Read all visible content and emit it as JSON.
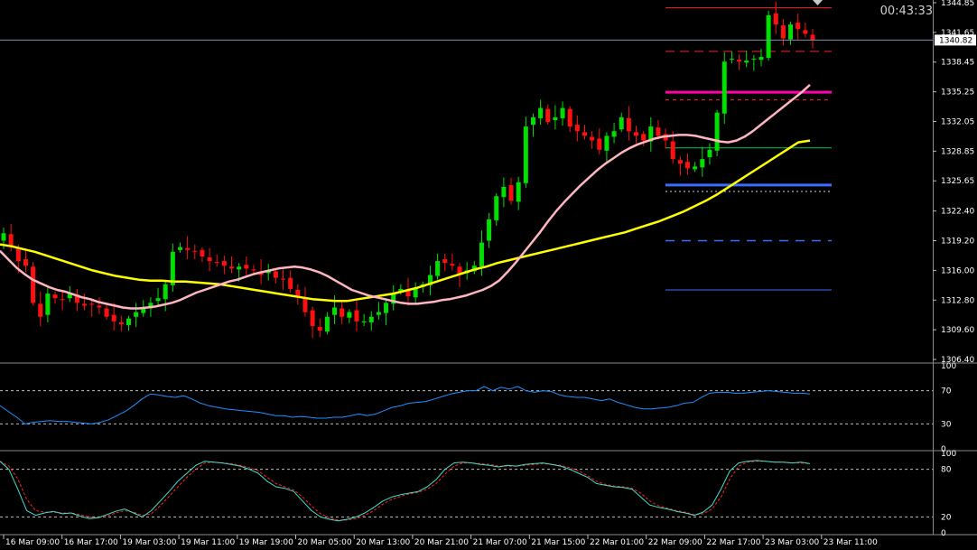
{
  "colors": {
    "background": "#000000",
    "bull_candle": "#00e000",
    "bear_candle": "#ff1010",
    "ma_fast": "#ffb6c1",
    "ma_slow": "#ffff00",
    "rsi_line": "#1e90ff",
    "stoch_main": "#40e0d0",
    "stoch_signal": "#ff2020",
    "level_red": "#ff2020",
    "level_magenta": "#ff00aa",
    "level_green": "#00cc44",
    "level_blue": "#3b6bff",
    "current_price_line": "#7d8fb0"
  },
  "timer": "00:43:33",
  "current_price_label": "1340.82",
  "chart_data": [
    {
      "type": "candlestick",
      "name": "main",
      "y_ticks": [
        1344.85,
        1341.65,
        1338.45,
        1335.25,
        1332.05,
        1328.85,
        1325.65,
        1322.4,
        1319.2,
        1316.0,
        1312.8,
        1309.6,
        1306.4
      ],
      "x_ticks": [
        "16 Mar 09:00",
        "16 Mar 17:00",
        "19 Mar 03:00",
        "19 Mar 11:00",
        "19 Mar 19:00",
        "20 Mar 05:00",
        "20 Mar 13:00",
        "20 Mar 21:00",
        "21 Mar 07:00",
        "21 Mar 15:00",
        "22 Mar 01:00",
        "22 Mar 09:00",
        "22 Mar 17:00",
        "23 Mar 03:00",
        "23 Mar 11:00"
      ],
      "ylim": [
        1306.4,
        1344.85
      ],
      "current_price": 1340.82,
      "candle_closes": [
        1320.0,
        1318.5,
        1317.0,
        1316.5,
        1312.5,
        1311.0,
        1313.5,
        1313.0,
        1312.8,
        1313.5,
        1312.5,
        1312.2,
        1312.3,
        1312.0,
        1311.0,
        1310.5,
        1310.2,
        1310.8,
        1311.5,
        1312.0,
        1312.5,
        1313.0,
        1314.5,
        1318.0,
        1318.5,
        1318.2,
        1318.0,
        1317.5,
        1317.0,
        1316.8,
        1316.5,
        1316.2,
        1316.4,
        1316.2,
        1316.0,
        1315.5,
        1316.0,
        1315.2,
        1315.0,
        1314.0,
        1313.2,
        1311.5,
        1310.0,
        1309.5,
        1311.0,
        1312.0,
        1311.0,
        1311.5,
        1310.5,
        1310.5,
        1311.0,
        1311.5,
        1312.5,
        1313.5,
        1314.0,
        1313.2,
        1314.0,
        1314.5,
        1315.5,
        1317.0,
        1316.8,
        1316.5,
        1315.5,
        1316.0,
        1316.5,
        1319.0,
        1321.5,
        1324.0,
        1325.0,
        1323.5,
        1325.5,
        1331.5,
        1332.5,
        1333.5,
        1332.0,
        1332.5,
        1333.5,
        1331.5,
        1331.0,
        1330.5,
        1330.0,
        1329.0,
        1330.5,
        1331.0,
        1332.5,
        1331.0,
        1330.5,
        1330.0,
        1331.5,
        1330.5,
        1330.0,
        1328.0,
        1327.5,
        1327.0,
        1327.2,
        1328.0,
        1329.0,
        1333.0,
        1338.5,
        1338.8,
        1338.5,
        1338.6,
        1338.8,
        1339.0,
        1343.5,
        1342.5,
        1341.0,
        1342.5,
        1342.0,
        1341.5,
        1340.82
      ],
      "levels": [
        1344.3,
        1339.6,
        1335.2,
        1334.4,
        1329.2,
        1325.2,
        1324.5,
        1319.2,
        1313.9
      ],
      "ma_fast": [
        1318.1,
        1317.2,
        1316.3,
        1315.6,
        1315.0,
        1314.6,
        1314.2,
        1313.9,
        1313.7,
        1313.4,
        1313.1,
        1312.9,
        1312.6,
        1312.4,
        1312.2,
        1312.0,
        1311.9,
        1311.9,
        1312.0,
        1312.1,
        1312.3,
        1312.5,
        1312.8,
        1313.2,
        1313.6,
        1313.9,
        1314.2,
        1314.5,
        1314.8,
        1315.0,
        1315.3,
        1315.6,
        1315.8,
        1316.0,
        1316.2,
        1316.3,
        1316.4,
        1316.3,
        1316.1,
        1315.8,
        1315.4,
        1314.9,
        1314.4,
        1313.9,
        1313.6,
        1313.3,
        1313.1,
        1312.9,
        1312.7,
        1312.5,
        1312.4,
        1312.4,
        1312.5,
        1312.6,
        1312.8,
        1312.9,
        1313.1,
        1313.3,
        1313.6,
        1313.9,
        1314.3,
        1314.9,
        1315.8,
        1316.8,
        1317.9,
        1319.0,
        1320.1,
        1321.3,
        1322.4,
        1323.4,
        1324.3,
        1325.2,
        1326.0,
        1326.8,
        1327.5,
        1328.1,
        1328.7,
        1329.2,
        1329.6,
        1329.9,
        1330.2,
        1330.4,
        1330.5,
        1330.6,
        1330.6,
        1330.5,
        1330.3,
        1330.1,
        1329.9,
        1329.8,
        1330.0,
        1330.4,
        1331.0,
        1331.7,
        1332.4,
        1333.1,
        1333.8,
        1334.5,
        1335.2,
        1336.0
      ],
      "ma_slow": [
        1318.8,
        1318.6,
        1318.3,
        1318.0,
        1317.6,
        1317.2,
        1316.8,
        1316.4,
        1316.0,
        1315.7,
        1315.4,
        1315.2,
        1315.0,
        1314.9,
        1314.9,
        1314.8,
        1314.8,
        1314.7,
        1314.6,
        1314.5,
        1314.3,
        1314.1,
        1313.9,
        1313.7,
        1313.5,
        1313.3,
        1313.1,
        1312.9,
        1312.8,
        1312.7,
        1312.7,
        1312.9,
        1313.1,
        1313.3,
        1313.5,
        1313.8,
        1314.1,
        1314.5,
        1314.9,
        1315.3,
        1315.7,
        1316.1,
        1316.4,
        1316.8,
        1317.1,
        1317.4,
        1317.7,
        1318.0,
        1318.3,
        1318.6,
        1318.9,
        1319.2,
        1319.5,
        1319.8,
        1320.1,
        1320.5,
        1320.9,
        1321.3,
        1321.8,
        1322.3,
        1322.9,
        1323.5,
        1324.2,
        1325.0,
        1325.8,
        1326.6,
        1327.4,
        1328.2,
        1329.0,
        1329.8,
        1330.0
      ]
    },
    {
      "type": "line",
      "name": "rsi",
      "y_ticks": [
        100,
        70,
        30,
        0
      ],
      "levels": [
        70,
        30
      ],
      "ylim": [
        0,
        100
      ],
      "values": [
        52,
        45,
        38,
        30,
        32,
        33,
        34,
        33,
        33,
        32,
        31,
        30,
        32,
        35,
        40,
        45,
        52,
        60,
        66,
        65,
        63,
        62,
        64,
        60,
        55,
        52,
        50,
        48,
        47,
        46,
        45,
        44,
        42,
        40,
        40,
        38,
        39,
        38,
        37,
        37,
        38,
        38,
        40,
        42,
        40,
        42,
        46,
        50,
        52,
        55,
        56,
        57,
        60,
        63,
        66,
        68,
        70,
        70,
        75,
        70,
        74,
        72,
        75,
        70,
        68,
        70,
        69,
        65,
        63,
        62,
        62,
        60,
        58,
        60,
        56,
        53,
        50,
        48,
        48,
        49,
        50,
        52,
        55,
        56,
        62,
        67,
        68,
        68,
        67,
        67,
        68,
        69,
        70,
        69,
        68,
        67,
        67,
        66
      ]
    },
    {
      "type": "line",
      "name": "stochastic",
      "y_ticks": [
        100,
        80,
        20,
        0
      ],
      "levels": [
        80,
        20
      ],
      "ylim": [
        0,
        100
      ],
      "main": [
        90,
        80,
        55,
        28,
        22,
        25,
        27,
        24,
        25,
        21,
        18,
        19,
        23,
        27,
        30,
        25,
        20,
        28,
        40,
        52,
        65,
        75,
        85,
        90,
        89,
        88,
        86,
        84,
        80,
        75,
        65,
        58,
        56,
        52,
        40,
        28,
        20,
        17,
        15,
        17,
        20,
        25,
        32,
        40,
        45,
        48,
        50,
        52,
        58,
        67,
        80,
        88,
        89,
        88,
        86,
        85,
        83,
        85,
        84,
        86,
        87,
        88,
        86,
        84,
        80,
        75,
        70,
        62,
        60,
        58,
        57,
        55,
        45,
        35,
        32,
        30,
        27,
        25,
        22,
        26,
        35,
        55,
        78,
        88,
        90,
        91,
        90,
        89,
        89,
        88,
        89,
        87
      ],
      "signal": [
        90,
        84,
        68,
        42,
        28,
        26,
        26,
        25,
        25,
        23,
        20,
        19,
        21,
        25,
        28,
        26,
        22,
        24,
        34,
        46,
        58,
        70,
        80,
        88,
        89,
        88,
        87,
        85,
        82,
        78,
        70,
        62,
        58,
        54,
        45,
        34,
        24,
        19,
        16,
        16,
        18,
        22,
        28,
        36,
        42,
        46,
        49,
        51,
        55,
        62,
        74,
        84,
        88,
        88,
        87,
        86,
        84,
        84,
        84,
        85,
        86,
        87,
        86,
        85,
        82,
        78,
        72,
        65,
        61,
        59,
        58,
        56,
        50,
        40,
        34,
        31,
        28,
        26,
        23,
        24,
        30,
        45,
        68,
        84,
        89,
        90,
        90,
        89,
        89,
        88,
        88,
        87
      ]
    }
  ]
}
